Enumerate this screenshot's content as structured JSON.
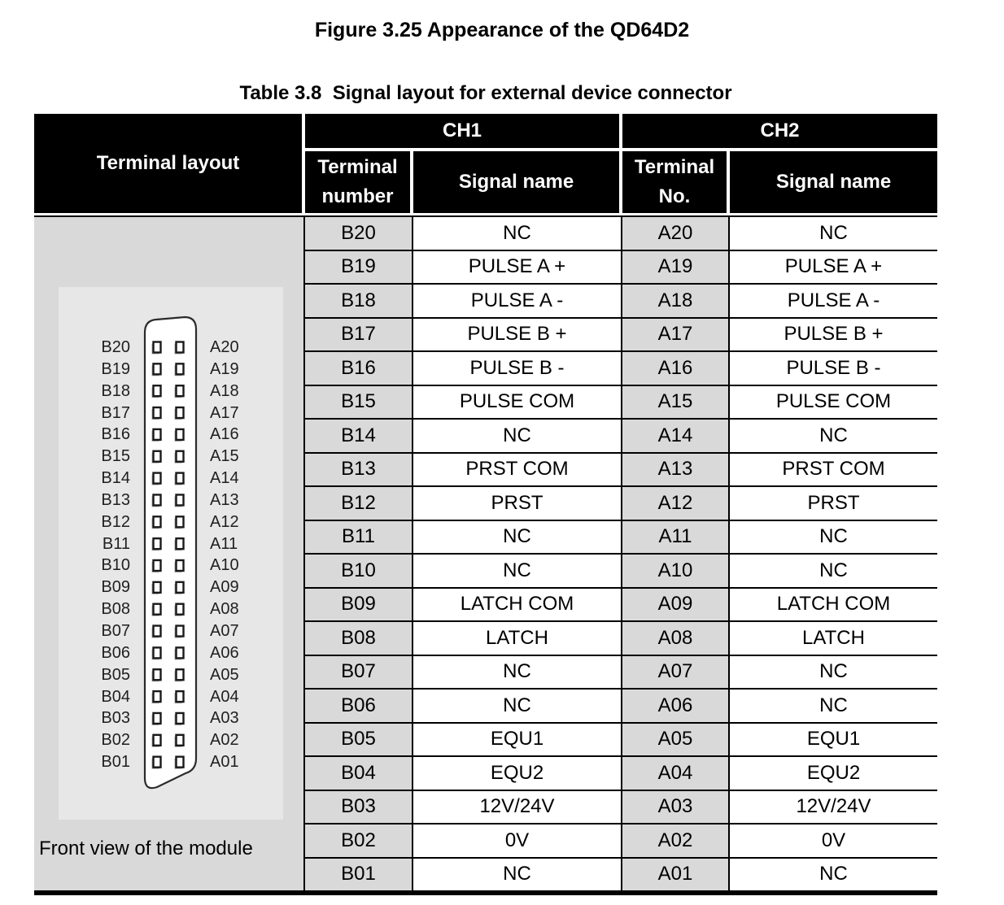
{
  "captions": {
    "figure": "Figure 3.25 Appearance of the QD64D2",
    "table": "Table 3.8  Signal layout for external device connector"
  },
  "table": {
    "headers": {
      "terminal_layout": "Terminal layout",
      "ch1": "CH1",
      "ch2": "CH2",
      "ch1_terminal": "Terminal number",
      "ch1_signal": "Signal name",
      "ch2_terminal": "Terminal No.",
      "ch2_signal": "Signal name"
    },
    "rows": [
      {
        "b": "B20",
        "b_signal": "NC",
        "a": "A20",
        "a_signal": "NC"
      },
      {
        "b": "B19",
        "b_signal": "PULSE A +",
        "a": "A19",
        "a_signal": "PULSE A +"
      },
      {
        "b": "B18",
        "b_signal": "PULSE A -",
        "a": "A18",
        "a_signal": "PULSE A -"
      },
      {
        "b": "B17",
        "b_signal": "PULSE B +",
        "a": "A17",
        "a_signal": "PULSE B +"
      },
      {
        "b": "B16",
        "b_signal": "PULSE B -",
        "a": "A16",
        "a_signal": "PULSE B -"
      },
      {
        "b": "B15",
        "b_signal": "PULSE COM",
        "a": "A15",
        "a_signal": "PULSE COM"
      },
      {
        "b": "B14",
        "b_signal": "NC",
        "a": "A14",
        "a_signal": "NC"
      },
      {
        "b": "B13",
        "b_signal": "PRST COM",
        "a": "A13",
        "a_signal": "PRST COM"
      },
      {
        "b": "B12",
        "b_signal": "PRST",
        "a": "A12",
        "a_signal": "PRST"
      },
      {
        "b": "B11",
        "b_signal": "NC",
        "a": "A11",
        "a_signal": "NC"
      },
      {
        "b": "B10",
        "b_signal": "NC",
        "a": "A10",
        "a_signal": "NC"
      },
      {
        "b": "B09",
        "b_signal": "LATCH COM",
        "a": "A09",
        "a_signal": "LATCH COM"
      },
      {
        "b": "B08",
        "b_signal": "LATCH",
        "a": "A08",
        "a_signal": "LATCH"
      },
      {
        "b": "B07",
        "b_signal": "NC",
        "a": "A07",
        "a_signal": "NC"
      },
      {
        "b": "B06",
        "b_signal": "NC",
        "a": "A06",
        "a_signal": "NC"
      },
      {
        "b": "B05",
        "b_signal": "EQU1",
        "a": "A05",
        "a_signal": "EQU1"
      },
      {
        "b": "B04",
        "b_signal": "EQU2",
        "a": "A04",
        "a_signal": "EQU2"
      },
      {
        "b": "B03",
        "b_signal": "12V/24V",
        "a": "A03",
        "a_signal": "12V/24V"
      },
      {
        "b": "B02",
        "b_signal": "0V",
        "a": "A02",
        "a_signal": "0V"
      },
      {
        "b": "B01",
        "b_signal": "NC",
        "a": "A01",
        "a_signal": "NC"
      }
    ]
  },
  "diagram": {
    "b_labels": [
      "B20",
      "B19",
      "B18",
      "B17",
      "B16",
      "B15",
      "B14",
      "B13",
      "B12",
      "B11",
      "B10",
      "B09",
      "B08",
      "B07",
      "B06",
      "B05",
      "B04",
      "B03",
      "B02",
      "B01"
    ],
    "a_labels": [
      "A20",
      "A19",
      "A18",
      "A17",
      "A16",
      "A15",
      "A14",
      "A13",
      "A12",
      "A11",
      "A10",
      "A09",
      "A08",
      "A07",
      "A06",
      "A05",
      "A04",
      "A03",
      "A02",
      "A01"
    ],
    "caption": "Front view of the module"
  },
  "colors": {
    "header_bg": "#000000",
    "header_text": "#ffffff",
    "cell_gray": "#d9d9d9",
    "panel_gray": "#e7e7e7",
    "border": "#000000",
    "page_bg": "#ffffff",
    "text": "#000000"
  }
}
